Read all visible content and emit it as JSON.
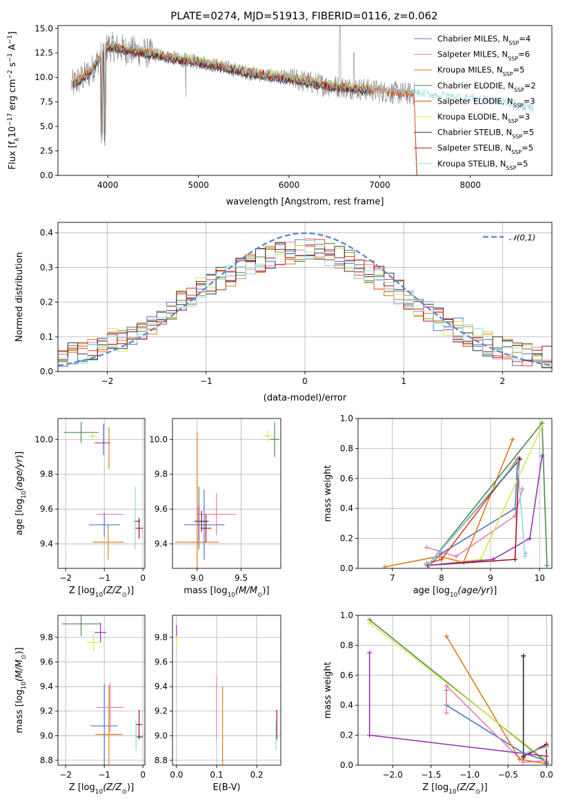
{
  "title": "PLATE=0274, MJD=51913, FIBERID=0116, z=0.062",
  "models": [
    {
      "name": "Chabrier MILES, N$_{SSP}$=4",
      "label": "Chabrier MILES, N",
      "sub": "SSP",
      "tail": "=4",
      "color": "#4f6fd3"
    },
    {
      "name": "Salpeter MILES, N$_{SSP}$=6",
      "label": "Salpeter MILES, N",
      "sub": "SSP",
      "tail": "=6",
      "color": "#e57fa9"
    },
    {
      "name": "Kroupa MILES, N$_{SSP}$=5",
      "label": "Kroupa MILES, N",
      "sub": "SSP",
      "tail": "=5",
      "color": "#e07b18"
    },
    {
      "name": "Chabrier ELODIE, N$_{SSP}$=2",
      "label": "Chabrier ELODIE, N",
      "sub": "SSP",
      "tail": "=2",
      "color": "#4c8a4c"
    },
    {
      "name": "Salpeter ELODIE, N$_{SSP}$=3",
      "label": "Salpeter ELODIE, N",
      "sub": "SSP",
      "tail": "=3",
      "color": "#e23c1c"
    },
    {
      "name": "Kroupa ELODIE, N$_{SSP}$=3",
      "label": "Kroupa ELODIE, N",
      "sub": "SSP",
      "tail": "=3",
      "color": "#d8e84a"
    },
    {
      "name": "Chabrier STELIB, N$_{SSP}$=5",
      "label": "Chabrier STELIB, N",
      "sub": "SSP",
      "tail": "=5",
      "color": "#333333"
    },
    {
      "name": "Salpeter STELIB, N$_{SSP}$=5",
      "label": "Salpeter STELIB, N",
      "sub": "SSP",
      "tail": "=5",
      "color": "#a0101a"
    },
    {
      "name": "Kroupa STELIB, N$_{SSP}$=5",
      "label": "Kroupa STELIB, N",
      "sub": "SSP",
      "tail": "=5",
      "color": "#8fd5e0"
    }
  ],
  "chart_data": [
    {
      "type": "line",
      "ylabel": "Flux [f_λ10^-17 erg cm^-2 s^-1 A^-1]",
      "ylabel_parts": {
        "pre": "Flux [f",
        "sub": "λ",
        "mid": "10",
        "sup1": "−17",
        "u1": " erg cm",
        "sup2": "−2",
        "u2": " s",
        "sup3": "−1",
        "u3": " A",
        "sup4": "−1",
        "post": "]"
      },
      "xlabel": "wavelength [Angstrom, rest frame]",
      "xlim": [
        3450,
        8900
      ],
      "ylim": [
        0,
        15.3
      ],
      "xticks": [
        4000,
        5000,
        6000,
        7000,
        8000
      ],
      "yticks": [
        0.0,
        2.5,
        5.0,
        7.5,
        10.0,
        12.5,
        15.0
      ],
      "ytick_labels": [
        "0.0",
        "2.5",
        "5.0",
        "7.5",
        "10.0",
        "12.5",
        "15.0"
      ],
      "data_color": "#808080",
      "continuum_x": [
        3600,
        3800,
        4000,
        4200,
        4500,
        4800,
        5000,
        5300,
        5600,
        6000,
        6400,
        6800,
        7200,
        7400,
        7600,
        8000,
        8400,
        8600
      ],
      "continuum_y": [
        9.2,
        10.5,
        13.2,
        12.8,
        12.4,
        11.8,
        11.6,
        11.0,
        10.4,
        9.9,
        9.2,
        8.8,
        8.4,
        8.3,
        8.1,
        7.8,
        7.3,
        6.8
      ],
      "legend_position": "upper right"
    },
    {
      "type": "histogram",
      "ylabel": "Normed distribution",
      "xlabel": "(data-model)/error",
      "xlim": [
        -2.5,
        2.5
      ],
      "ylim": [
        0,
        0.43
      ],
      "xticks": [
        -2,
        -1,
        0,
        1,
        2
      ],
      "yticks": [
        0.0,
        0.1,
        0.2,
        0.3,
        0.4
      ],
      "ytick_labels": [
        "0.0",
        "0.1",
        "0.2",
        "0.3",
        "0.4"
      ],
      "bin_edges_start": -2.5,
      "bin_width": 0.1,
      "reference_curve": {
        "name": "𝒩(0,1)",
        "mean": 0,
        "sigma": 1,
        "color": "#5a8ad8"
      },
      "base_values": [
        0.04,
        0.05,
        0.05,
        0.06,
        0.07,
        0.09,
        0.09,
        0.1,
        0.12,
        0.14,
        0.16,
        0.18,
        0.2,
        0.22,
        0.24,
        0.25,
        0.27,
        0.28,
        0.3,
        0.31,
        0.32,
        0.33,
        0.34,
        0.34,
        0.35,
        0.35,
        0.35,
        0.34,
        0.33,
        0.32,
        0.3,
        0.29,
        0.27,
        0.25,
        0.23,
        0.21,
        0.19,
        0.17,
        0.15,
        0.13,
        0.12,
        0.1,
        0.09,
        0.08,
        0.07,
        0.06,
        0.05,
        0.05,
        0.04,
        0.04
      ],
      "legend_position": "upper right"
    },
    {
      "type": "scatter",
      "subtype": "errorbar",
      "xlabel": "Z [log10(Z/Z⊙)]",
      "ylabel": "age  [log10(age/yr)]",
      "xlim": [
        -2.2,
        0.05
      ],
      "ylim": [
        9.26,
        10.12
      ],
      "xticks": [
        -2,
        -1,
        0
      ],
      "yticks": [
        9.4,
        9.6,
        9.8,
        10.0
      ],
      "ytick_labels": [
        "9.4",
        "9.6",
        "9.8",
        "10.0"
      ],
      "points": [
        {
          "x": -1.0,
          "y": 9.51,
          "xerr": 0.4,
          "yerr": 0.07,
          "color": "#4f6fd3"
        },
        {
          "x": -1.02,
          "y": 10.0,
          "xerr": 0.0,
          "yerr": 0.09,
          "color": "#4f6fd3"
        },
        {
          "x": -0.85,
          "y": 9.57,
          "xerr": 0.35,
          "yerr": 0.0,
          "color": "#e57fa9"
        },
        {
          "x": -0.9,
          "y": 9.41,
          "xerr": 0.4,
          "yerr": 0.1,
          "color": "#e07b18"
        },
        {
          "x": -0.88,
          "y": 9.95,
          "xerr": 0.0,
          "yerr": 0.12,
          "color": "#e07b18"
        },
        {
          "x": -1.6,
          "y": 10.04,
          "xerr": 0.45,
          "yerr": 0.06,
          "color": "#4c8a4c"
        },
        {
          "x": -1.05,
          "y": 9.98,
          "xerr": 0.2,
          "yerr": 0.0,
          "color": "#9b2fb5"
        },
        {
          "x": -1.3,
          "y": 10.02,
          "xerr": 0.1,
          "yerr": 0.02,
          "color": "#d8e84a"
        },
        {
          "x": -0.15,
          "y": 9.53,
          "xerr": 0.08,
          "yerr": 0.0,
          "color": "#333333"
        },
        {
          "x": -0.1,
          "y": 9.49,
          "xerr": 0.1,
          "yerr": 0.06,
          "color": "#a0101a"
        },
        {
          "x": -0.2,
          "y": 9.55,
          "xerr": 0.0,
          "yerr": 0.18,
          "color": "#8fd5e0"
        }
      ]
    },
    {
      "type": "scatter",
      "subtype": "errorbar",
      "xlabel": "mass [log10(M/M⊙)]",
      "ylabel": "",
      "xlim": [
        8.72,
        9.95
      ],
      "ylim": [
        9.26,
        10.12
      ],
      "xticks": [
        9.0,
        9.5
      ],
      "xtick_labels": [
        "9.0",
        "9.5"
      ],
      "yticks": [
        9.4,
        9.6,
        9.8,
        10.0
      ],
      "ytick_labels": [
        "9.4",
        "9.6",
        "9.8",
        "10.0"
      ],
      "points": [
        {
          "x": 9.08,
          "y": 9.51,
          "xerr": 0.23,
          "yerr": 0.2,
          "color": "#4f6fd3"
        },
        {
          "x": 9.22,
          "y": 9.57,
          "xerr": 0.22,
          "yerr": 0.12,
          "color": "#e57fa9"
        },
        {
          "x": 9.0,
          "y": 9.41,
          "xerr": 0.25,
          "yerr": 0.2,
          "color": "#e07b18"
        },
        {
          "x": 9.0,
          "y": 9.79,
          "xerr": 0.0,
          "yerr": 0.25,
          "color": "#e07b18"
        },
        {
          "x": 9.02,
          "y": 9.55,
          "xerr": 0.0,
          "yerr": 0.18,
          "color": "#4c8a4c"
        },
        {
          "x": 9.88,
          "y": 10.0,
          "xerr": 0.05,
          "yerr": 0.1,
          "color": "#4c8a4c"
        },
        {
          "x": 9.05,
          "y": 9.53,
          "xerr": 0.08,
          "yerr": 0.06,
          "color": "#333333"
        },
        {
          "x": 9.1,
          "y": 9.49,
          "xerr": 0.06,
          "yerr": 0.08,
          "color": "#a0101a"
        },
        {
          "x": 9.8,
          "y": 10.02,
          "xerr": 0.05,
          "yerr": 0.03,
          "color": "#d8e84a"
        },
        {
          "x": 9.02,
          "y": 9.52,
          "xerr": 0.0,
          "yerr": 0.1,
          "color": "#9b2fb5"
        }
      ]
    },
    {
      "type": "line",
      "xlabel": "age  [log10(age/yr)]",
      "ylabel": "mass weight",
      "xlim": [
        6.3,
        10.25
      ],
      "ylim": [
        0,
        1.0
      ],
      "xticks": [
        7,
        8,
        9,
        10
      ],
      "xtick_labels": [
        "7",
        "8",
        "9",
        "10"
      ],
      "yticks": [
        0.0,
        0.2,
        0.4,
        0.6,
        0.8,
        1.0
      ],
      "ytick_labels": [
        "0.0",
        "0.2",
        "0.4",
        "0.6",
        "0.8",
        "1.0"
      ],
      "series": [
        {
          "color": "#4f6fd3",
          "x": [
            7.75,
            8.0,
            9.5,
            9.55
          ],
          "y": [
            0.02,
            0.1,
            0.4,
            0.72
          ]
        },
        {
          "color": "#e57fa9",
          "x": [
            7.7,
            8.3,
            9.5,
            9.65
          ],
          "y": [
            0.14,
            0.08,
            0.35,
            0.53
          ]
        },
        {
          "color": "#e07b18",
          "x": [
            6.85,
            7.95,
            8.45,
            9.45
          ],
          "y": [
            0.01,
            0.08,
            0.04,
            0.86
          ]
        },
        {
          "color": "#4c8a4c",
          "x": [
            7.75,
            10.05,
            10.15
          ],
          "y": [
            0.03,
            0.97,
            0.02
          ]
        },
        {
          "color": "#e23c1c",
          "x": [
            7.7,
            8.0,
            9.55
          ],
          "y": [
            0.03,
            0.06,
            0.73
          ]
        },
        {
          "color": "#d8e84a",
          "x": [
            7.7,
            8.8,
            10.05
          ],
          "y": [
            0.02,
            0.06,
            0.95
          ]
        },
        {
          "color": "#333333",
          "x": [
            7.72,
            9.6
          ],
          "y": [
            0.02,
            0.73
          ]
        },
        {
          "color": "#a0101a",
          "x": [
            7.72,
            9.5,
            9.58
          ],
          "y": [
            0.02,
            0.06,
            0.73
          ]
        },
        {
          "color": "#9b2fb5",
          "x": [
            7.72,
            9.05,
            9.8,
            10.05
          ],
          "y": [
            0.02,
            0.06,
            0.2,
            0.75
          ]
        },
        {
          "color": "#8fd5e0",
          "x": [
            7.75,
            9.55,
            9.7,
            9.72
          ],
          "y": [
            0.03,
            0.72,
            0.08,
            0.1
          ]
        }
      ]
    },
    {
      "type": "scatter",
      "subtype": "errorbar",
      "xlabel": "Z [log10(Z/Z⊙)]",
      "ylabel": "mass [log10(M/M⊙)]",
      "xlim": [
        -2.2,
        0.05
      ],
      "ylim": [
        8.76,
        9.98
      ],
      "xticks": [
        -2,
        -1,
        0
      ],
      "xtick_labels": [
        "−2",
        "−1",
        "0"
      ],
      "yticks": [
        8.8,
        9.0,
        9.2,
        9.4,
        9.6,
        9.8
      ],
      "ytick_labels": [
        "8.8",
        "9.0",
        "9.2",
        "9.4",
        "9.6",
        "9.8"
      ],
      "points": [
        {
          "x": -1.0,
          "y": 9.08,
          "xerr": 0.35,
          "yerr": 0.34,
          "color": "#4f6fd3"
        },
        {
          "x": -0.85,
          "y": 9.23,
          "xerr": 0.35,
          "yerr": 0.2,
          "color": "#e57fa9"
        },
        {
          "x": -0.88,
          "y": 9.01,
          "xerr": 0.35,
          "yerr": 0.4,
          "color": "#e07b18"
        },
        {
          "x": -1.6,
          "y": 9.91,
          "xerr": 0.5,
          "yerr": 0.1,
          "color": "#4c8a4c"
        },
        {
          "x": -1.1,
          "y": 9.84,
          "xerr": 0.15,
          "yerr": 0.08,
          "color": "#9b2fb5"
        },
        {
          "x": -1.28,
          "y": 9.76,
          "xerr": 0.18,
          "yerr": 0.07,
          "color": "#d8e84a"
        },
        {
          "x": -0.1,
          "y": 9.09,
          "xerr": 0.08,
          "yerr": 0.12,
          "color": "#a0101a"
        },
        {
          "x": -0.08,
          "y": 8.99,
          "xerr": 0.08,
          "yerr": 0.0,
          "color": "#333333"
        },
        {
          "x": -0.18,
          "y": 9.0,
          "xerr": 0.0,
          "yerr": 0.12,
          "color": "#8fd5e0"
        }
      ]
    },
    {
      "type": "scatter",
      "subtype": "errorbar",
      "xlabel": "E(B-V)",
      "ylabel": "",
      "xlim": [
        -0.01,
        0.26
      ],
      "ylim": [
        8.76,
        9.98
      ],
      "xticks": [
        0.0,
        0.1,
        0.2
      ],
      "xtick_labels": [
        "0.0",
        "0.1",
        "0.2"
      ],
      "yticks": [
        8.8,
        9.0,
        9.2,
        9.4,
        9.6,
        9.8
      ],
      "ytick_labels": [
        "8.8",
        "9.0",
        "9.2",
        "9.4",
        "9.6",
        "9.8"
      ],
      "points": [
        {
          "x": 0.0,
          "y": 9.84,
          "xerr": 0,
          "yerr": 0.06,
          "color": "#9b2fb5"
        },
        {
          "x": 0.0,
          "y": 9.76,
          "xerr": 0,
          "yerr": 0.05,
          "color": "#d8e84a"
        },
        {
          "x": 0.1,
          "y": 9.23,
          "xerr": 0,
          "yerr": 0.26,
          "color": "#e57fa9"
        },
        {
          "x": 0.115,
          "y": 9.0,
          "xerr": 0,
          "yerr": 0.4,
          "color": "#e07b18"
        },
        {
          "x": 0.25,
          "y": 9.09,
          "xerr": 0,
          "yerr": 0.12,
          "color": "#a0101a"
        },
        {
          "x": 0.248,
          "y": 9.0,
          "xerr": 0,
          "yerr": 0.12,
          "color": "#8fd5e0"
        }
      ]
    },
    {
      "type": "line",
      "xlabel": "Z [log10(Z/Z⊙)]",
      "ylabel": "mass weight",
      "xlim": [
        -2.45,
        0.07
      ],
      "ylim": [
        0,
        1.0
      ],
      "xticks": [
        -2.0,
        -1.5,
        -1.0,
        -0.5,
        0.0
      ],
      "xtick_labels": [
        "−2.0",
        "−1.5",
        "−1.0",
        "−0.5",
        "0.0"
      ],
      "yticks": [
        0.0,
        0.2,
        0.4,
        0.6,
        0.8,
        1.0
      ],
      "ytick_labels": [
        "0.0",
        "0.2",
        "0.4",
        "0.6",
        "0.8",
        "1.0"
      ],
      "series": [
        {
          "color": "#4f6fd3",
          "x": [
            -1.3,
            -1.3,
            -0.3,
            0.0
          ],
          "y": [
            0.5,
            0.4,
            0.08,
            0.03
          ]
        },
        {
          "color": "#e57fa9",
          "x": [
            -1.3,
            -1.3,
            -0.3,
            0.0
          ],
          "y": [
            0.35,
            0.53,
            0.02,
            0.03
          ]
        },
        {
          "color": "#e07b18",
          "x": [
            -1.3,
            -0.35,
            0.0
          ],
          "y": [
            0.86,
            0.04,
            0.01
          ]
        },
        {
          "color": "#4c8a4c",
          "x": [
            -2.3,
            0.0
          ],
          "y": [
            0.97,
            0.02
          ]
        },
        {
          "color": "#d8e84a",
          "x": [
            -2.3,
            0.0
          ],
          "y": [
            0.95,
            0.03
          ]
        },
        {
          "color": "#e23c1c",
          "x": [
            -0.3,
            -0.3,
            0.0,
            0.0
          ],
          "y": [
            0.73,
            0.06,
            0.13,
            0.01
          ]
        },
        {
          "color": "#a0101a",
          "x": [
            -0.3,
            0.0,
            0.0
          ],
          "y": [
            0.06,
            0.14,
            0.01
          ]
        },
        {
          "color": "#9b2fb5",
          "x": [
            -2.3,
            -2.3,
            0.0,
            0.0
          ],
          "y": [
            0.75,
            0.2,
            0.06,
            0.01
          ]
        },
        {
          "color": "#8fd5e0",
          "x": [
            -0.3,
            -0.3,
            0.0
          ],
          "y": [
            0.72,
            0.08,
            0.12
          ]
        },
        {
          "color": "#333333",
          "x": [
            -0.3,
            -0.3
          ],
          "y": [
            0.73,
            0.05
          ]
        }
      ]
    }
  ]
}
